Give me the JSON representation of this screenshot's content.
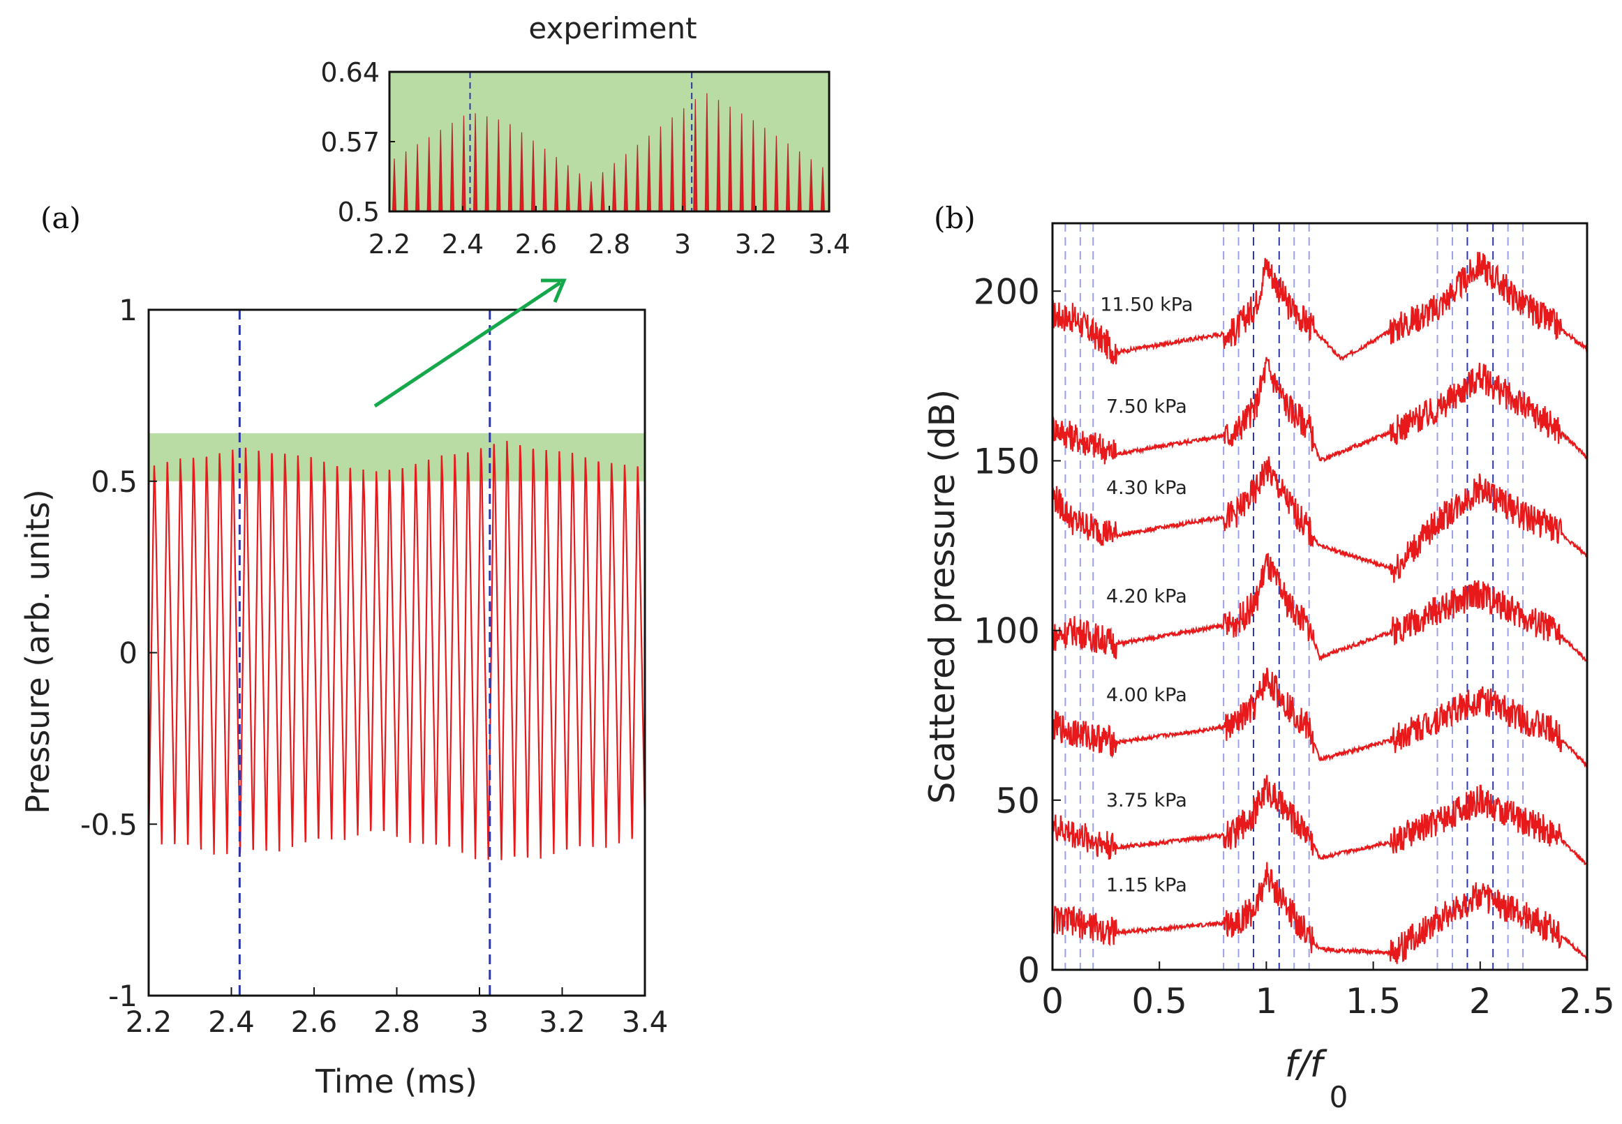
{
  "figure": {
    "panel_a_label": "(a)",
    "panel_b_label": "(b)",
    "inset_title": "experiment"
  },
  "colors": {
    "signal": "#e8191b",
    "guide": "#2b35a8",
    "guide_light": "#9aa0e6",
    "band": "#b9dca4",
    "arrow": "#14a84a"
  },
  "chart_data": [
    {
      "id": "panel_a_main",
      "type": "line",
      "title": "",
      "xlabel": "Time (ms)",
      "ylabel": "Pressure (arb. units)",
      "xlim": [
        2.2,
        3.4
      ],
      "ylim": [
        -1,
        1
      ],
      "xticks": [
        2.2,
        2.4,
        2.6,
        2.8,
        3,
        3.2,
        3.4
      ],
      "xtick_labels": [
        "2.2",
        "2.4",
        "2.6",
        "2.8",
        "3",
        "3.2",
        "3.4"
      ],
      "yticks": [
        1,
        0.5,
        0,
        -0.5,
        -1
      ],
      "ytick_labels": [
        "1",
        "0.5",
        "0",
        "-0.5",
        "-1"
      ],
      "highlight_band": [
        0.5,
        0.64
      ],
      "vlines": [
        2.42,
        3.025
      ],
      "period_ms": 0.0316,
      "envelope_peaks": [
        [
          2.2,
          0.55
        ],
        [
          2.42,
          0.6
        ],
        [
          2.52,
          0.59
        ],
        [
          2.75,
          0.53
        ],
        [
          3.06,
          0.62
        ],
        [
          3.2,
          0.59
        ],
        [
          3.4,
          0.54
        ]
      ],
      "envelope_troughs": [
        [
          2.2,
          -0.56
        ],
        [
          2.42,
          -0.6
        ],
        [
          2.75,
          -0.53
        ],
        [
          3.05,
          -0.62
        ],
        [
          3.4,
          -0.55
        ]
      ],
      "grid": false
    },
    {
      "id": "panel_a_inset",
      "type": "line",
      "title": "experiment",
      "xlim": [
        2.2,
        3.4
      ],
      "ylim": [
        0.5,
        0.64
      ],
      "xticks": [
        2.2,
        2.4,
        2.6,
        2.8,
        3,
        3.2,
        3.4
      ],
      "xtick_labels": [
        "2.2",
        "2.4",
        "2.6",
        "2.8",
        "3",
        "3.2",
        "3.4"
      ],
      "yticks": [
        0.64,
        0.57,
        0.5
      ],
      "ytick_labels": [
        "0.64",
        "0.57",
        "0.5"
      ],
      "vlines": [
        2.42,
        3.025
      ],
      "background": "band",
      "grid": false
    },
    {
      "id": "panel_b",
      "type": "line",
      "title": "",
      "xlabel": "f/f",
      "xlabel_sub": "0",
      "ylabel": "Scattered pressure (dB)",
      "xlim": [
        0,
        2.5
      ],
      "ylim": [
        0,
        220
      ],
      "xticks": [
        0,
        0.5,
        1,
        1.5,
        2,
        2.5
      ],
      "xtick_labels": [
        "0",
        "0.5",
        "1",
        "1.5",
        "2",
        "2.5"
      ],
      "yticks": [
        0,
        50,
        100,
        150,
        200
      ],
      "ytick_labels": [
        "0",
        "50",
        "100",
        "150",
        "200"
      ],
      "vlines_dark": [
        0.94,
        1.06,
        1.94,
        2.06
      ],
      "vlines_light": [
        0.06,
        0.13,
        0.19,
        0.8,
        0.87,
        1.13,
        1.2,
        1.8,
        1.87,
        2.13,
        2.2
      ],
      "series": [
        {
          "name": "11.50 kPa",
          "base": 180,
          "values": [
            [
              0,
              193
            ],
            [
              0.1,
              192
            ],
            [
              0.3,
              182
            ],
            [
              0.85,
              188
            ],
            [
              0.95,
              196
            ],
            [
              1.0,
              208
            ],
            [
              1.1,
              196
            ],
            [
              1.2,
              190
            ],
            [
              1.35,
              180
            ],
            [
              1.6,
              189
            ],
            [
              1.8,
              195
            ],
            [
              2.0,
              208
            ],
            [
              2.2,
              196
            ],
            [
              2.35,
              190
            ],
            [
              2.5,
              183
            ]
          ]
        },
        {
          "name": "7.50 kPa",
          "base": 150,
          "values": [
            [
              0,
              160
            ],
            [
              0.1,
              157
            ],
            [
              0.3,
              152
            ],
            [
              0.85,
              158
            ],
            [
              0.95,
              166
            ],
            [
              1.0,
              178
            ],
            [
              1.1,
              166
            ],
            [
              1.2,
              160
            ],
            [
              1.25,
              150
            ],
            [
              1.6,
              159
            ],
            [
              1.8,
              165
            ],
            [
              2.0,
              175
            ],
            [
              2.2,
              166
            ],
            [
              2.35,
              160
            ],
            [
              2.5,
              151
            ]
          ]
        },
        {
          "name": "4.30 kPa",
          "base": 120,
          "values": [
            [
              0,
              140
            ],
            [
              0.1,
              132
            ],
            [
              0.3,
              128
            ],
            [
              0.85,
              134
            ],
            [
              0.95,
              141
            ],
            [
              1.0,
              148
            ],
            [
              1.1,
              138
            ],
            [
              1.25,
              125
            ],
            [
              1.6,
              118
            ],
            [
              1.8,
              132
            ],
            [
              2.0,
              142
            ],
            [
              2.2,
              134
            ],
            [
              2.35,
              130
            ],
            [
              2.5,
              122
            ]
          ]
        },
        {
          "name": "4.20 kPa",
          "base": 90,
          "values": [
            [
              0,
              98
            ],
            [
              0.1,
              100
            ],
            [
              0.3,
              96
            ],
            [
              0.85,
              102
            ],
            [
              0.95,
              108
            ],
            [
              1.0,
              120
            ],
            [
              1.1,
              108
            ],
            [
              1.2,
              101
            ],
            [
              1.25,
              92
            ],
            [
              1.6,
              100
            ],
            [
              1.8,
              106
            ],
            [
              2.0,
              111
            ],
            [
              2.2,
              104
            ],
            [
              2.35,
              100
            ],
            [
              2.5,
              91
            ]
          ]
        },
        {
          "name": "4.00 kPa",
          "base": 60,
          "values": [
            [
              0,
              72
            ],
            [
              0.1,
              70
            ],
            [
              0.3,
              67
            ],
            [
              0.85,
              72
            ],
            [
              0.95,
              78
            ],
            [
              1.0,
              86
            ],
            [
              1.1,
              78
            ],
            [
              1.2,
              71
            ],
            [
              1.25,
              62
            ],
            [
              1.6,
              68
            ],
            [
              1.8,
              74
            ],
            [
              2.0,
              80
            ],
            [
              2.2,
              74
            ],
            [
              2.35,
              70
            ],
            [
              2.5,
              60
            ]
          ]
        },
        {
          "name": "3.75 kPa",
          "base": 30,
          "values": [
            [
              0,
              42
            ],
            [
              0.1,
              40
            ],
            [
              0.3,
              36
            ],
            [
              0.85,
              40
            ],
            [
              0.95,
              47
            ],
            [
              1.0,
              54
            ],
            [
              1.1,
              46
            ],
            [
              1.2,
              40
            ],
            [
              1.25,
              33
            ],
            [
              1.6,
              38
            ],
            [
              1.8,
              44
            ],
            [
              2.0,
              50
            ],
            [
              2.2,
              44
            ],
            [
              2.35,
              40
            ],
            [
              2.5,
              31
            ]
          ]
        },
        {
          "name": "1.15 kPa",
          "base": 3,
          "values": [
            [
              0,
              15
            ],
            [
              0.1,
              14
            ],
            [
              0.3,
              11
            ],
            [
              0.85,
              14
            ],
            [
              0.95,
              18
            ],
            [
              1.0,
              28
            ],
            [
              1.1,
              18
            ],
            [
              1.2,
              10
            ],
            [
              1.25,
              6
            ],
            [
              1.6,
              5
            ],
            [
              1.8,
              15
            ],
            [
              2.0,
              22
            ],
            [
              2.2,
              16
            ],
            [
              2.35,
              12
            ],
            [
              2.5,
              3
            ]
          ]
        }
      ],
      "grid": false
    }
  ]
}
